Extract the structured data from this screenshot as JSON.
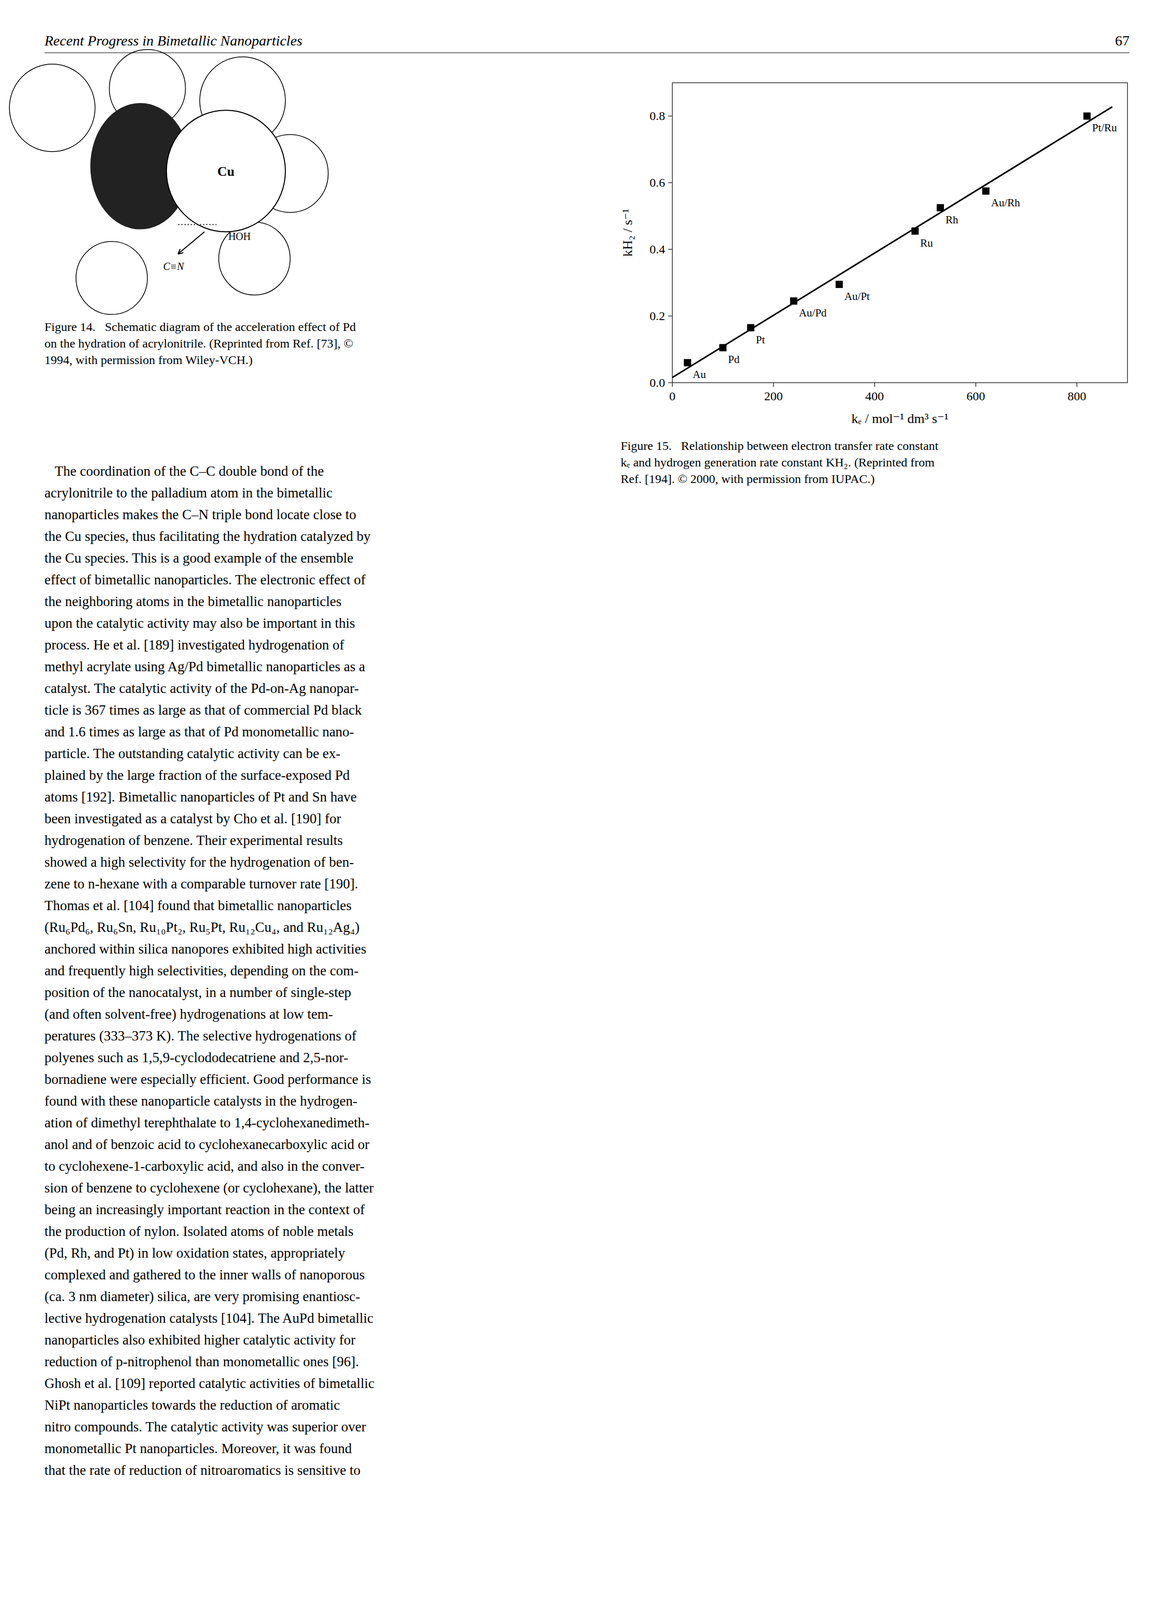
{
  "chart_data": {
    "type": "scatter",
    "xlabel": "kₑ / mol⁻¹ dm³ s⁻¹",
    "ylabel": "kH₂ / s⁻¹",
    "caption": "Figure 15.   Relationship between electron transfer rate constant\nkₑ and hydrogen generation rate constant KH₂. (Reprinted from\nRef. [194]. © 2000, with permission from IUPAC.)",
    "xlim": [
      0,
      900
    ],
    "ylim": [
      0,
      0.9
    ],
    "xticks": [
      0,
      200,
      400,
      600,
      800
    ],
    "yticks": [
      {
        "value": 0,
        "label": "0.0"
      },
      0.2,
      0.4,
      0.6,
      0.8
    ],
    "grid": false,
    "series": [
      {
        "type": "scatter",
        "marker": "square",
        "color": "black",
        "labels": [
          "Au",
          "Pd",
          "Pt",
          "Au/Pd",
          "Au/Pt",
          "Ru",
          "Rh",
          "Au/Rh",
          "Pt/Ru"
        ],
        "x": [
          30,
          100,
          155,
          240,
          330,
          480,
          530,
          620,
          820
        ],
        "values": [
          0.06,
          0.105,
          0.165,
          0.245,
          0.295,
          0.455,
          0.525,
          0.575,
          0.8
        ]
      },
      {
        "type": "line",
        "line_style": "solid",
        "color": "black",
        "x": [
          0,
          870
        ],
        "values": [
          0.0155,
          0.8277
        ]
      }
    ]
  },
  "page": {
    "header_left": "Recent Progress in Bimetallic Nanoparticles",
    "header_right": "67",
    "fig14_labels": [
      "Cu",
      "HOH",
      "C≡N"
    ],
    "fig14_caption": "Figure 14.   Schematic diagram of the acceleration effect of Pd\non the hydration of acrylonitrile. (Reprinted from Ref. [73], ©\n1994, with permission from Wiley-VCH.)",
    "body_text": [
      "   The coordination of the C–C double bond of the",
      "acrylonitrile to the palladium atom in the bimetallic",
      "nanoparticles makes the C–N triple bond locate close to",
      "the Cu species, thus facilitating the hydration catalyzed by",
      "the Cu species. This is a good example of the ensemble",
      "effect of bimetallic nanoparticles. The electronic effect of",
      "the neighboring atoms in the bimetallic nanoparticles",
      "upon the catalytic activity may also be important in this",
      "process. He et al. [189] investigated hydrogenation of",
      "methyl acrylate using Ag/Pd bimetallic nanoparticles as a",
      "catalyst. The catalytic activity of the Pd-on-Ag nanopar-",
      "ticle is 367 times as large as that of commercial Pd black",
      "and 1.6 times as large as that of Pd monometallic nano-",
      "particle. The outstanding catalytic activity can be ex-",
      "plained by the large fraction of the surface-exposed Pd",
      "atoms [192]. Bimetallic nanoparticles of Pt and Sn have",
      "been investigated as a catalyst by Cho et al. [190] for",
      "hydrogenation of benzene. Their experimental results",
      "showed a high selectivity for the hydrogenation of ben-",
      "zene to n-hexane with a comparable turnover rate [190].",
      "Thomas et al. [104] found that bimetallic nanoparticles",
      "(Ru₆Pd₆, Ru₆Sn, Ru₁₀Pt₂, Ru₅Pt, Ru₁₂Cu₄, and Ru₁₂Ag₄)",
      "anchored within silica nanopores exhibited high activities",
      "and frequently high selectivities, depending on the com-",
      "position of the nanocatalyst, in a number of single-step",
      "(and often solvent-free) hydrogenations at low tem-",
      "peratures (333–373 K). The selective hydrogenations of",
      "polyenes such as 1,5,9-cyclododecatriene and 2,5-nor-",
      "bornadiene were especially efficient. Good performance is",
      "found with these nanoparticle catalysts in the hydrogen-",
      "ation of dimethyl terephthalate to 1,4-cyclohexanedimeth-",
      "anol and of benzoic acid to cyclohexanecarboxylic acid or",
      "to cyclohexene-1-carboxylic acid, and also in the conver-",
      "sion of benzene to cyclohexene (or cyclohexane), the latter",
      "being an increasingly important reaction in the context of",
      "the production of nylon. Isolated atoms of noble metals",
      "(Pd, Rh, and Pt) in low oxidation states, appropriately",
      "complexed and gathered to the inner walls of nanoporous",
      "(ca. 3 nm diameter) silica, are very promising enantiosc-",
      "lective hydrogenation catalysts [104]. The AuPd bimetallic",
      "nanoparticles also exhibited higher catalytic activity for",
      "reduction of p-nitrophenol than monometallic ones [96].",
      "Ghosh et al. [109] reported catalytic activities of bimetallic",
      "NiPt nanoparticles towards the reduction of aromatic",
      "nitro compounds. The catalytic activity was superior over",
      "monometallic Pt nanoparticles. Moreover, it was found",
      "that the rate of reduction of nitroaromatics is sensitive to"
    ]
  }
}
